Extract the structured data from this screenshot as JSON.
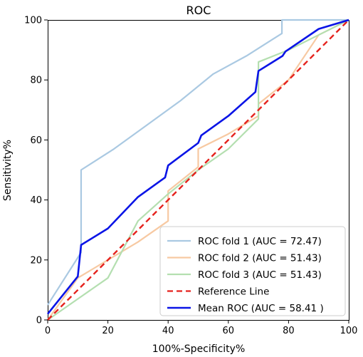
{
  "chart_data": {
    "type": "line",
    "title": "ROC",
    "xlabel": "100%-Specificity%",
    "ylabel": "Sensitivity%",
    "xlim": [
      0,
      100
    ],
    "ylim": [
      0,
      100
    ],
    "xticks": [
      0,
      20,
      40,
      60,
      80,
      100
    ],
    "yticks": [
      0,
      20,
      40,
      60,
      80,
      100
    ],
    "grid": false,
    "legend_position": "bottom-right",
    "series": [
      {
        "name": "ROC fold 1 (AUC = 72.47)",
        "color": "#aac9e2",
        "style": "solid",
        "x": [
          0,
          11.1,
          11.1,
          22,
          33,
          44,
          55,
          66,
          77.8,
          77.8,
          100
        ],
        "y": [
          5,
          22.5,
          50,
          57,
          65,
          73,
          82,
          88,
          95.5,
          100,
          100
        ]
      },
      {
        "name": "ROC fold 2 (AUC = 51.43)",
        "color": "#f7c9a2",
        "style": "solid",
        "x": [
          0,
          10,
          20,
          30,
          40,
          40,
          50,
          50,
          60,
          70,
          70,
          80,
          90,
          100
        ],
        "y": [
          0,
          14,
          20,
          26,
          33,
          43,
          51,
          57,
          62,
          68,
          72,
          80,
          95,
          100
        ]
      },
      {
        "name": "ROC fold 3 (AUC = 51.43)",
        "color": "#b4dfb0",
        "style": "solid",
        "x": [
          0,
          10,
          20,
          30,
          40,
          50,
          60,
          70,
          70,
          80,
          90,
          100
        ],
        "y": [
          0,
          7,
          14,
          33,
          42,
          50,
          57,
          67,
          86,
          90,
          95,
          100
        ]
      },
      {
        "name": "Reference Line",
        "color": "#e5221d",
        "style": "dashed",
        "x": [
          0,
          100
        ],
        "y": [
          0,
          100
        ]
      },
      {
        "name": "Mean ROC (AUC = 58.41 )",
        "color": "#0a14e6",
        "style": "solid",
        "x": [
          0,
          10,
          11.1,
          20,
          30,
          39,
          40,
          50,
          51,
          60,
          69,
          70,
          78,
          79,
          90,
          100
        ],
        "y": [
          2,
          14.5,
          25,
          30.5,
          41,
          47.5,
          51.5,
          59,
          61.5,
          68,
          76,
          83,
          88,
          89.5,
          97,
          100
        ]
      }
    ]
  }
}
